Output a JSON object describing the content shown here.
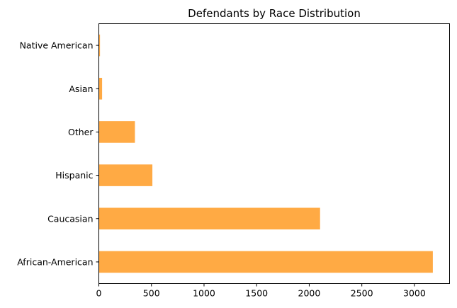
{
  "chart_data": {
    "type": "bar",
    "orientation": "horizontal",
    "title": "Defendants by Race Distribution",
    "xlabel": "",
    "ylabel": "",
    "categories": [
      "African-American",
      "Caucasian",
      "Hispanic",
      "Other",
      "Asian",
      "Native American"
    ],
    "values": [
      3175,
      2103,
      509,
      343,
      31,
      11
    ],
    "xlim": [
      0,
      3334
    ],
    "xticks": [
      0,
      500,
      1000,
      1500,
      2000,
      2500,
      3000
    ],
    "bar_color": "#ffaa44",
    "grid": false,
    "legend": "none"
  }
}
